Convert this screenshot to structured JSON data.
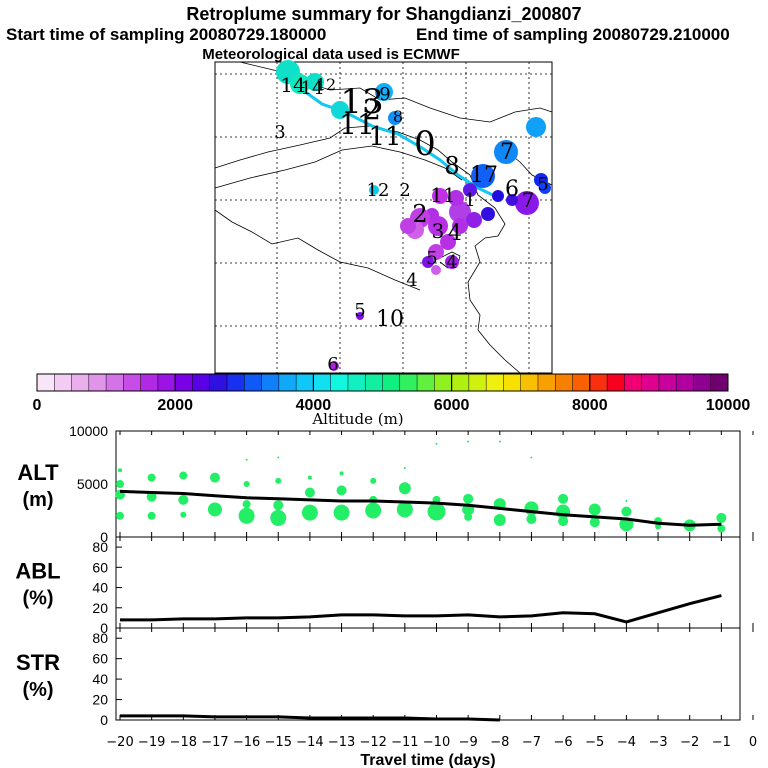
{
  "header": {
    "title": "Retroplume summary for Shangdianzi_200807",
    "start_label": "Start time of sampling 20080729.180000",
    "end_label": "End time of sampling 20080729.210000",
    "met_label": "Meteorological data used is ECMWF"
  },
  "colorbar": {
    "title": "Altitude (m)",
    "min": 0,
    "max": 10000,
    "tick_labels": [
      "0",
      "2000",
      "4000",
      "6000",
      "8000",
      "10000"
    ],
    "colors": [
      "#f8e6f8",
      "#f2ccf2",
      "#eab0ee",
      "#e094ea",
      "#d472e8",
      "#c84ce6",
      "#b02ae6",
      "#9a14e6",
      "#7a00e6",
      "#5a00e6",
      "#3010e0",
      "#1830f0",
      "#1058f8",
      "#1080f8",
      "#10a8f8",
      "#10c8f8",
      "#10e0f0",
      "#10f8e0",
      "#10f0c0",
      "#10f0a0",
      "#10f080",
      "#30f060",
      "#60f040",
      "#90f020",
      "#b0f010",
      "#d0f010",
      "#f0f010",
      "#f8e000",
      "#f8c000",
      "#f8a000",
      "#f88000",
      "#f86000",
      "#f83010",
      "#f80020",
      "#f00070",
      "#e00090",
      "#c800a0",
      "#b000a0",
      "#900090",
      "#700070"
    ]
  },
  "map": {
    "trajectory_color": "#10c8f0",
    "labels": [
      {
        "text": "14",
        "color": "#000000"
      },
      {
        "text": "14",
        "color": "#000000"
      },
      {
        "text": "12",
        "color": "#000000"
      },
      {
        "text": "13",
        "color": "#000000"
      },
      {
        "text": "9",
        "color": "#000000"
      },
      {
        "text": "3",
        "color": "#000000"
      },
      {
        "text": "11",
        "color": "#000000"
      },
      {
        "text": "2",
        "color": "#000000"
      },
      {
        "text": "11",
        "color": "#000000"
      },
      {
        "text": "0",
        "color": "#000000"
      },
      {
        "text": "8",
        "color": "#000000"
      },
      {
        "text": "8",
        "color": "#000000"
      },
      {
        "text": "7",
        "color": "#000000"
      },
      {
        "text": "12",
        "color": "#000000"
      },
      {
        "text": "2",
        "color": "#000000"
      },
      {
        "text": "11",
        "color": "#000000"
      },
      {
        "text": "17",
        "color": "#000000"
      },
      {
        "text": "6",
        "color": "#000000"
      },
      {
        "text": "7",
        "color": "#000000"
      },
      {
        "text": "5",
        "color": "#000000"
      },
      {
        "text": "1",
        "color": "#000000"
      },
      {
        "text": "2",
        "color": "#000000"
      },
      {
        "text": "4",
        "color": "#000000"
      },
      {
        "text": "3",
        "color": "#000000"
      },
      {
        "text": "4",
        "color": "#000000"
      },
      {
        "text": "5",
        "color": "#000000"
      },
      {
        "text": "4",
        "color": "#000000"
      },
      {
        "text": "5",
        "color": "#000000"
      },
      {
        "text": "10",
        "color": "#000000"
      },
      {
        "text": "6",
        "color": "#000000"
      }
    ]
  },
  "chart_data": [
    {
      "type": "scatter",
      "panel": "ALT",
      "title": "ALT",
      "ylabel": "(m)",
      "ylim": [
        0,
        10000
      ],
      "yticks": [
        "0",
        "5000",
        "10000"
      ],
      "xlim": [
        -20,
        0
      ],
      "line_x": [
        -20,
        -19,
        -18,
        -17,
        -16,
        -15,
        -14,
        -13,
        -12,
        -11,
        -10,
        -9,
        -8,
        -7,
        -6,
        -5,
        -4,
        -3,
        -2,
        -1
      ],
      "line_y": [
        4300,
        4200,
        4100,
        3900,
        3700,
        3600,
        3500,
        3400,
        3400,
        3300,
        3200,
        3000,
        2700,
        2400,
        2100,
        1900,
        1700,
        1300,
        1100,
        1200
      ],
      "points": [
        {
          "x": -20,
          "y": 6300,
          "s": 2
        },
        {
          "x": -20,
          "y": 5000,
          "s": 4
        },
        {
          "x": -20,
          "y": 4000,
          "s": 5
        },
        {
          "x": -20,
          "y": 2000,
          "s": 4
        },
        {
          "x": -19,
          "y": 5600,
          "s": 4
        },
        {
          "x": -19,
          "y": 3800,
          "s": 5
        },
        {
          "x": -19,
          "y": 2000,
          "s": 4
        },
        {
          "x": -18,
          "y": 5800,
          "s": 4
        },
        {
          "x": -18,
          "y": 3500,
          "s": 5
        },
        {
          "x": -18,
          "y": 2100,
          "s": 3
        },
        {
          "x": -17,
          "y": 5600,
          "s": 5
        },
        {
          "x": -17,
          "y": 2600,
          "s": 7
        },
        {
          "x": -16,
          "y": 7300,
          "s": 1
        },
        {
          "x": -16,
          "y": 5000,
          "s": 3
        },
        {
          "x": -16,
          "y": 3100,
          "s": 4
        },
        {
          "x": -16,
          "y": 2000,
          "s": 8
        },
        {
          "x": -15,
          "y": 7500,
          "s": 1
        },
        {
          "x": -15,
          "y": 5300,
          "s": 3
        },
        {
          "x": -15,
          "y": 3000,
          "s": 5
        },
        {
          "x": -15,
          "y": 1800,
          "s": 8
        },
        {
          "x": -14,
          "y": 5600,
          "s": 2
        },
        {
          "x": -14,
          "y": 4200,
          "s": 5
        },
        {
          "x": -14,
          "y": 2300,
          "s": 8
        },
        {
          "x": -13,
          "y": 6000,
          "s": 2
        },
        {
          "x": -13,
          "y": 4400,
          "s": 5
        },
        {
          "x": -13,
          "y": 2300,
          "s": 8
        },
        {
          "x": -12,
          "y": 5300,
          "s": 3
        },
        {
          "x": -12,
          "y": 3500,
          "s": 4
        },
        {
          "x": -12,
          "y": 2500,
          "s": 8
        },
        {
          "x": -11,
          "y": 6500,
          "s": 1
        },
        {
          "x": -11,
          "y": 4600,
          "s": 6
        },
        {
          "x": -11,
          "y": 2600,
          "s": 8
        },
        {
          "x": -10,
          "y": 8800,
          "s": 1
        },
        {
          "x": -10,
          "y": 3500,
          "s": 4
        },
        {
          "x": -10,
          "y": 2400,
          "s": 9
        },
        {
          "x": -9,
          "y": 9000,
          "s": 1
        },
        {
          "x": -9,
          "y": 3600,
          "s": 5
        },
        {
          "x": -9,
          "y": 2600,
          "s": 6
        },
        {
          "x": -9,
          "y": 1900,
          "s": 4
        },
        {
          "x": -8,
          "y": 9000,
          "s": 1
        },
        {
          "x": -8,
          "y": 3100,
          "s": 6
        },
        {
          "x": -8,
          "y": 1600,
          "s": 6
        },
        {
          "x": -7,
          "y": 7500,
          "s": 1
        },
        {
          "x": -7,
          "y": 2700,
          "s": 7
        },
        {
          "x": -7,
          "y": 1700,
          "s": 5
        },
        {
          "x": -6,
          "y": 3600,
          "s": 5
        },
        {
          "x": -6,
          "y": 2400,
          "s": 7
        },
        {
          "x": -6,
          "y": 1500,
          "s": 5
        },
        {
          "x": -5,
          "y": 2600,
          "s": 6
        },
        {
          "x": -5,
          "y": 1400,
          "s": 5
        },
        {
          "x": -4,
          "y": 3400,
          "s": 1
        },
        {
          "x": -4,
          "y": 2400,
          "s": 5
        },
        {
          "x": -4,
          "y": 1200,
          "s": 7
        },
        {
          "x": -3,
          "y": 1500,
          "s": 4
        },
        {
          "x": -3,
          "y": 1000,
          "s": 3
        },
        {
          "x": -2,
          "y": 1100,
          "s": 6
        },
        {
          "x": -1,
          "y": 1800,
          "s": 5
        },
        {
          "x": -1,
          "y": 800,
          "s": 4
        }
      ],
      "point_color": "#22ee66"
    },
    {
      "type": "line",
      "panel": "ABL",
      "title": "ABL",
      "ylabel": "(%)",
      "ylim": [
        0,
        90
      ],
      "yticks": [
        "0",
        "20",
        "40",
        "60",
        "80"
      ],
      "xlim": [
        -20,
        0
      ],
      "x": [
        -20,
        -19,
        -18,
        -17,
        -16,
        -15,
        -14,
        -13,
        -12,
        -11,
        -10,
        -9,
        -8,
        -7,
        -6,
        -5,
        -4,
        -3,
        -2,
        -1
      ],
      "y": [
        8,
        8,
        9,
        9,
        10,
        10,
        11,
        13,
        13,
        12,
        12,
        13,
        11,
        12,
        15,
        14,
        6,
        15,
        24,
        32
      ]
    },
    {
      "type": "line",
      "panel": "STR",
      "title": "STR",
      "ylabel": "(%)",
      "ylim": [
        0,
        90
      ],
      "yticks": [
        "0",
        "20",
        "40",
        "60",
        "80"
      ],
      "xlim": [
        -20,
        0
      ],
      "xlabel": "Travel time (days)",
      "xticks": [
        "−20",
        "−19",
        "−18",
        "−17",
        "−16",
        "−15",
        "−14",
        "−13",
        "−12",
        "−11",
        "−10",
        "−9",
        "−8",
        "−7",
        "−6",
        "−5",
        "−4",
        "−3",
        "−2",
        "−1",
        "0"
      ],
      "x": [
        -20,
        -19,
        -18,
        -17,
        -16,
        -15,
        -14,
        -13,
        -12,
        -11,
        -10,
        -9,
        -8
      ],
      "y": [
        4,
        4,
        4,
        3,
        3,
        3,
        2,
        2,
        2,
        2,
        1,
        1,
        0
      ]
    }
  ]
}
